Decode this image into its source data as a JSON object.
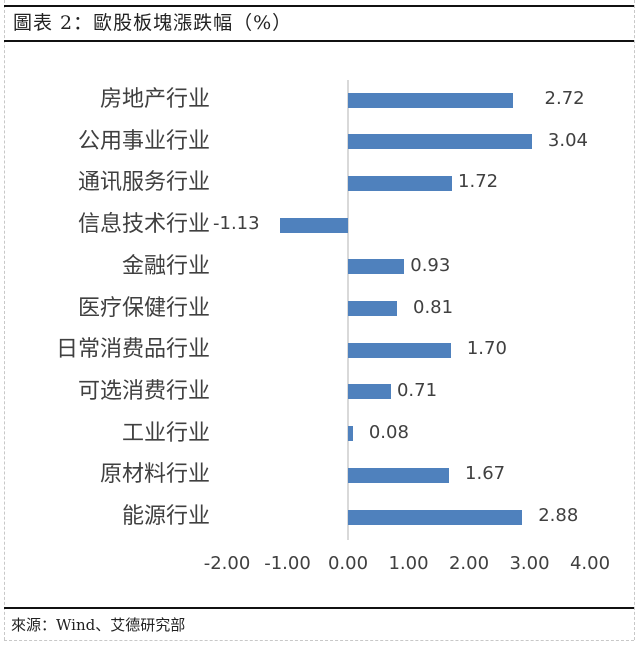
{
  "title": "圖表 2：歐股板塊漲跌幅（%）",
  "source": "來源：Wind、艾德研究部",
  "colors": {
    "bar": "#4f81bd",
    "axis": "#d9d9d9",
    "text": "#404040"
  },
  "chart_data": {
    "type": "bar",
    "orientation": "horizontal",
    "title": "歐股板塊漲跌幅（%）",
    "xlabel": "",
    "ylabel": "",
    "categories": [
      "房地产行业",
      "公用事业行业",
      "通讯服务行业",
      "信息技术行业",
      "金融行业",
      "医疗保健行业",
      "日常消费品行业",
      "可选消费行业",
      "工业行业",
      "原材料行业",
      "能源行业"
    ],
    "values": [
      2.72,
      3.04,
      1.72,
      -1.13,
      0.93,
      0.81,
      1.7,
      0.71,
      0.08,
      1.67,
      2.88
    ],
    "value_labels": [
      "2.72",
      "3.04",
      "1.72",
      "-1.13",
      "0.93",
      "0.81",
      "1.70",
      "0.71",
      "0.08",
      "1.67",
      "2.88"
    ],
    "xlim": [
      -2.0,
      4.0
    ],
    "x_ticks": [
      "-2.00",
      "-1.00",
      "0.00",
      "1.00",
      "2.00",
      "3.00",
      "4.00"
    ],
    "grid": false,
    "legend": null
  }
}
